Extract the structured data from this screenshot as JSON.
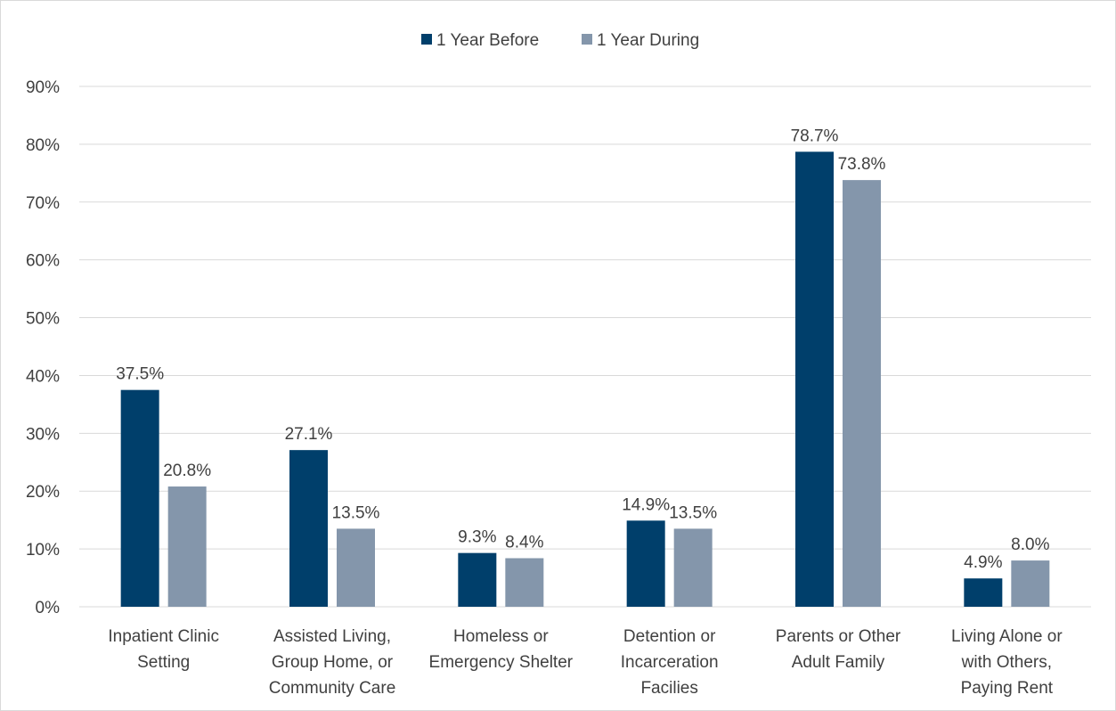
{
  "chart_data": {
    "type": "bar",
    "categories": [
      [
        "Inpatient Clinic",
        "Setting"
      ],
      [
        "Assisted Living,",
        "Group Home, or",
        "Community Care"
      ],
      [
        "Homeless or",
        "Emergency Shelter"
      ],
      [
        "Detention or",
        "Incarceration",
        "Facilies"
      ],
      [
        "Parents or Other",
        "Adult Family"
      ],
      [
        "Living Alone or",
        "with Others,",
        "Paying Rent"
      ]
    ],
    "series": [
      {
        "name": "1 Year Before",
        "color": "#003f6b",
        "values": [
          37.5,
          27.1,
          9.3,
          14.9,
          78.7,
          4.9
        ],
        "labels": [
          "37.5%",
          "27.1%",
          "9.3%",
          "14.9%",
          "78.7%",
          "4.9%"
        ]
      },
      {
        "name": "1 Year During",
        "color": "#8496ab",
        "values": [
          20.8,
          13.5,
          8.4,
          13.5,
          73.8,
          8.0
        ],
        "labels": [
          "20.8%",
          "13.5%",
          "8.4%",
          "13.5%",
          "73.8%",
          "8.0%"
        ]
      }
    ],
    "yticks": [
      "0%",
      "10%",
      "20%",
      "30%",
      "40%",
      "50%",
      "60%",
      "70%",
      "80%",
      "90%"
    ],
    "ylim": [
      0,
      90
    ],
    "grid": true,
    "legend_position": "top-center",
    "gridline_color": "#d9d9d9"
  }
}
